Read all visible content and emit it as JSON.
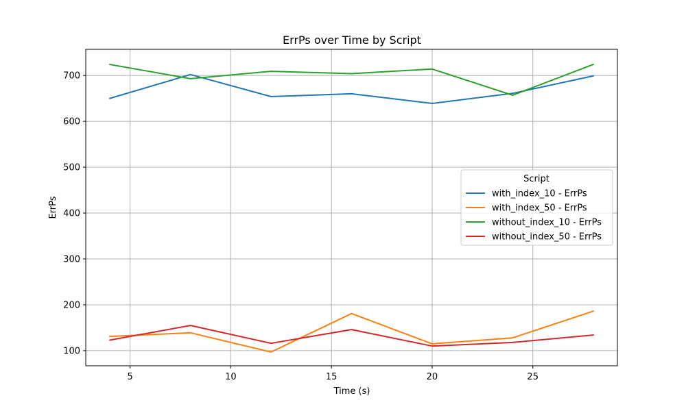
{
  "chart_data": {
    "type": "line",
    "title": "ErrPs over Time by Script",
    "xlabel": "Time (s)",
    "ylabel": "ErrPs",
    "xlim": [
      2.8,
      29.2
    ],
    "ylim": [
      67,
      757
    ],
    "xticks": [
      5,
      10,
      15,
      20,
      25
    ],
    "yticks": [
      100,
      200,
      300,
      400,
      500,
      600,
      700
    ],
    "grid": true,
    "legend": {
      "title": "Script",
      "placement": "center-right"
    },
    "x": [
      4,
      8,
      12,
      16,
      20,
      24,
      28
    ],
    "series": [
      {
        "name": "with_index_10 - ErrPs",
        "color": "#1f77b4",
        "values": [
          650,
          702,
          654,
          660,
          639,
          661,
          699
        ]
      },
      {
        "name": "with_index_50 - ErrPs",
        "color": "#ff7f0e",
        "values": [
          131,
          139,
          97,
          181,
          115,
          128,
          186
        ]
      },
      {
        "name": "without_index_10 - ErrPs",
        "color": "#2ca02c",
        "values": [
          724,
          693,
          709,
          704,
          714,
          657,
          724
        ]
      },
      {
        "name": "without_index_50 - ErrPs",
        "color": "#d62728",
        "values": [
          123,
          155,
          116,
          146,
          110,
          118,
          134
        ]
      }
    ]
  }
}
